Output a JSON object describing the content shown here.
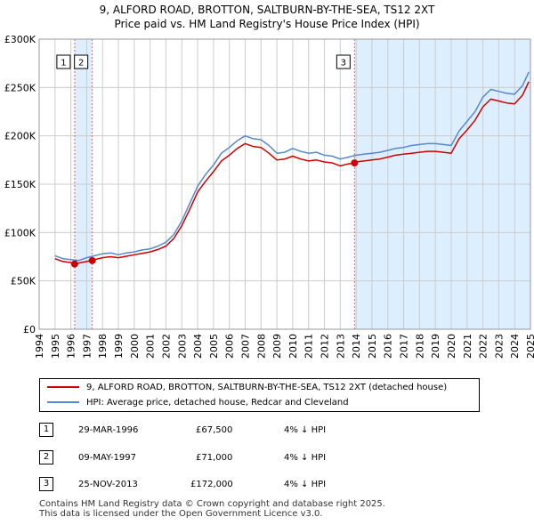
{
  "title": {
    "line1": "9, ALFORD ROAD, BROTTON, SALTBURN-BY-THE-SEA, TS12 2XT",
    "line2": "Price paid vs. HM Land Registry's House Price Index (HPI)"
  },
  "colors": {
    "price_line": "#cc0000",
    "hpi_line": "#5588cc",
    "shade": "#ddeeff",
    "marker_line": "#dd6666",
    "grid": "#cccccc"
  },
  "chart_data": {
    "type": "line",
    "title": "Price paid vs. HM Land Registry's House Price Index (HPI)",
    "xlim": [
      1994,
      2025
    ],
    "ylim": [
      0,
      300000
    ],
    "y_ticks": [
      0,
      50000,
      100000,
      150000,
      200000,
      250000,
      300000
    ],
    "y_tick_labels": [
      "£0",
      "£50K",
      "£100K",
      "£150K",
      "£200K",
      "£250K",
      "£300K"
    ],
    "x_ticks": [
      "1994",
      "1995",
      "1996",
      "1997",
      "1998",
      "1999",
      "2000",
      "2001",
      "2002",
      "2003",
      "2004",
      "2005",
      "2006",
      "2007",
      "2008",
      "2009",
      "2010",
      "2011",
      "2012",
      "2013",
      "2014",
      "2015",
      "2016",
      "2017",
      "2018",
      "2019",
      "2020",
      "2021",
      "2022",
      "2023",
      "2024",
      "2025"
    ],
    "shaded_ranges": [
      [
        1996.24,
        1997.35
      ],
      [
        2013.9,
        2025
      ]
    ],
    "hpi_series": {
      "name": "HPI: Average price, detached house, Redcar and Cleveland",
      "x": [
        1995,
        1995.5,
        1996,
        1996.5,
        1997,
        1997.5,
        1998,
        1998.5,
        1999,
        1999.5,
        2000,
        2000.5,
        2001,
        2001.5,
        2002,
        2002.5,
        2003,
        2003.5,
        2004,
        2004.5,
        2005,
        2005.5,
        2006,
        2006.5,
        2007,
        2007.5,
        2008,
        2008.5,
        2009,
        2009.5,
        2010,
        2010.5,
        2011,
        2011.5,
        2012,
        2012.5,
        2013,
        2013.5,
        2014,
        2014.5,
        2015,
        2015.5,
        2016,
        2016.5,
        2017,
        2017.5,
        2018,
        2018.5,
        2019,
        2019.5,
        2020,
        2020.5,
        2021,
        2021.5,
        2022,
        2022.5,
        2023,
        2023.5,
        2024,
        2024.5,
        2024.9
      ],
      "y": [
        76000,
        73000,
        72000,
        71000,
        74000,
        76000,
        78000,
        79000,
        77000,
        79000,
        80000,
        82000,
        83000,
        86000,
        90000,
        98000,
        112000,
        130000,
        148000,
        160000,
        170000,
        182000,
        188000,
        195000,
        200000,
        197000,
        196000,
        190000,
        182000,
        183000,
        187000,
        184000,
        182000,
        183000,
        180000,
        179000,
        176000,
        178000,
        180000,
        181000,
        182000,
        183000,
        185000,
        187000,
        188000,
        190000,
        191000,
        192000,
        192000,
        191000,
        190000,
        205000,
        215000,
        225000,
        240000,
        248000,
        246000,
        244000,
        243000,
        252000,
        266000
      ]
    },
    "price_series": {
      "name": "9, ALFORD ROAD, BROTTON, SALTBURN-BY-THE-SEA, TS12 2XT (detached house)",
      "x": [
        1995,
        1995.5,
        1996,
        1996.24,
        1996.5,
        1997,
        1997.35,
        1997.5,
        1998,
        1998.5,
        1999,
        1999.5,
        2000,
        2000.5,
        2001,
        2001.5,
        2002,
        2002.5,
        2003,
        2003.5,
        2004,
        2004.5,
        2005,
        2005.5,
        2006,
        2006.5,
        2007,
        2007.5,
        2008,
        2008.5,
        2009,
        2009.5,
        2010,
        2010.5,
        2011,
        2011.5,
        2012,
        2012.5,
        2013,
        2013.5,
        2013.9,
        2014,
        2014.5,
        2015,
        2015.5,
        2016,
        2016.5,
        2017,
        2017.5,
        2018,
        2018.5,
        2019,
        2019.5,
        2020,
        2020.5,
        2021,
        2021.5,
        2022,
        2022.5,
        2023,
        2023.5,
        2024,
        2024.5,
        2024.9
      ],
      "y": [
        73000,
        70000,
        69000,
        67500,
        68500,
        70000,
        71000,
        72000,
        74000,
        75000,
        74000,
        75500,
        77000,
        78500,
        80000,
        82500,
        86000,
        94000,
        107000,
        124000,
        142000,
        153000,
        163000,
        174000,
        180000,
        187000,
        192000,
        189000,
        188000,
        182000,
        175000,
        176000,
        179000,
        176000,
        174000,
        175000,
        173000,
        172000,
        169000,
        171000,
        172000,
        173000,
        174000,
        175000,
        176000,
        178000,
        180000,
        181000,
        182000,
        183000,
        184000,
        184000,
        183000,
        182000,
        197000,
        206000,
        216000,
        230000,
        238000,
        236000,
        234000,
        233000,
        242000,
        256000
      ]
    },
    "sales": [
      {
        "label": "1",
        "x": 1996.24,
        "y": 67500
      },
      {
        "label": "2",
        "x": 1997.35,
        "y": 71000
      },
      {
        "label": "3",
        "x": 2013.9,
        "y": 172000
      }
    ]
  },
  "legend": {
    "price_label": "9, ALFORD ROAD, BROTTON, SALTBURN-BY-THE-SEA, TS12 2XT (detached house)",
    "hpi_label": "HPI: Average price, detached house, Redcar and Cleveland"
  },
  "transactions": [
    {
      "num": "1",
      "date": "29-MAR-1996",
      "price": "£67,500",
      "hpi": "4% ↓ HPI"
    },
    {
      "num": "2",
      "date": "09-MAY-1997",
      "price": "£71,000",
      "hpi": "4% ↓ HPI"
    },
    {
      "num": "3",
      "date": "25-NOV-2013",
      "price": "£172,000",
      "hpi": "4% ↓ HPI"
    }
  ],
  "footer": {
    "line1": "Contains HM Land Registry data © Crown copyright and database right 2025.",
    "line2": "This data is licensed under the Open Government Licence v3.0."
  }
}
